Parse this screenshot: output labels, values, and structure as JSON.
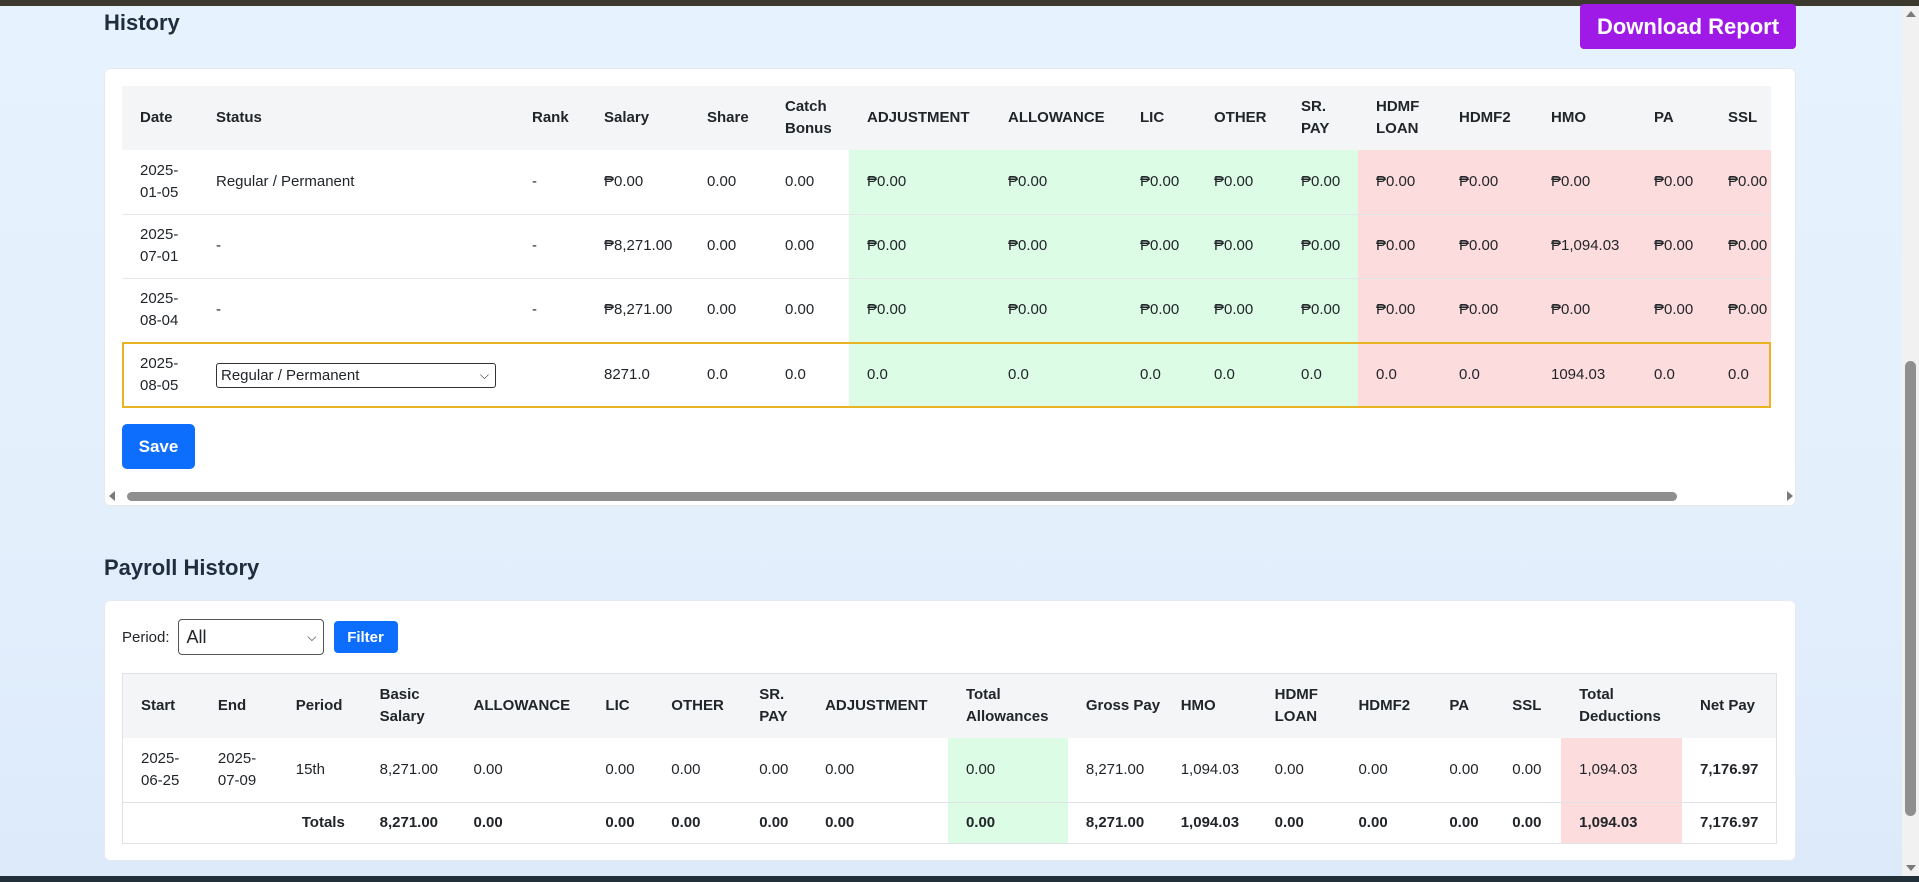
{
  "history": {
    "title": "History",
    "download_label": "Download Report",
    "columns": [
      "Date",
      "Status",
      "Rank",
      "Salary",
      "Share",
      "Catch Bonus",
      "ADJUSTMENT",
      "ALLOWANCE",
      "LIC",
      "OTHER",
      "SR. PAY",
      "HDMF LOAN",
      "HDMF2",
      "HMO",
      "PA",
      "SSL"
    ],
    "rows": [
      [
        "2025-01-05",
        "Regular / Permanent",
        "-",
        "₱0.00",
        "0.00",
        "0.00",
        "₱0.00",
        "₱0.00",
        "₱0.00",
        "₱0.00",
        "₱0.00",
        "₱0.00",
        "₱0.00",
        "₱0.00",
        "₱0.00",
        "₱0.00"
      ],
      [
        "2025-07-01",
        "-",
        "-",
        "₱8,271.00",
        "0.00",
        "0.00",
        "₱0.00",
        "₱0.00",
        "₱0.00",
        "₱0.00",
        "₱0.00",
        "₱0.00",
        "₱0.00",
        "₱1,094.03",
        "₱0.00",
        "₱0.00"
      ],
      [
        "2025-08-04",
        "-",
        "-",
        "₱8,271.00",
        "0.00",
        "0.00",
        "₱0.00",
        "₱0.00",
        "₱0.00",
        "₱0.00",
        "₱0.00",
        "₱0.00",
        "₱0.00",
        "₱0.00",
        "₱0.00",
        "₱0.00"
      ]
    ],
    "edit_row": {
      "date": "2025-08-05",
      "status_selected": "Regular / Permanent",
      "rank": "",
      "values": [
        "8271.0",
        "0.0",
        "0.0",
        "0.0",
        "0.0",
        "0.0",
        "0.0",
        "0.0",
        "0.0",
        "0.0",
        "1094.03",
        "0.0",
        "0.0"
      ]
    },
    "save_label": "Save"
  },
  "payroll": {
    "title": "Payroll History",
    "period_label": "Period:",
    "period_selected": "All",
    "filter_label": "Filter",
    "columns": [
      "Start",
      "End",
      "Period",
      "Basic Salary",
      "ALLOWANCE",
      "LIC",
      "OTHER",
      "SR. PAY",
      "ADJUSTMENT",
      "Total Allowances",
      "Gross Pay",
      "HMO",
      "HDMF LOAN",
      "HDMF2",
      "PA",
      "SSL",
      "Total Deductions",
      "Net Pay"
    ],
    "rows": [
      [
        "2025-06-25",
        "2025-07-09",
        "15th",
        "8,271.00",
        "0.00",
        "0.00",
        "0.00",
        "0.00",
        "0.00",
        "0.00",
        "8,271.00",
        "1,094.03",
        "0.00",
        "0.00",
        "0.00",
        "0.00",
        "1,094.03",
        "7,176.97"
      ]
    ],
    "totals_label": "Totals",
    "totals": [
      "8,271.00",
      "0.00",
      "0.00",
      "0.00",
      "0.00",
      "0.00",
      "0.00",
      "8,271.00",
      "1,094.03",
      "0.00",
      "0.00",
      "0.00",
      "0.00",
      "1,094.03",
      "7,176.97"
    ]
  },
  "colors": {
    "allowance_bg": "#dcfce6",
    "deduction_bg": "#fddcdd",
    "primary": "#0d6efd",
    "report_button": "#9f1ae6",
    "edit_row_border": "#e8b422"
  }
}
